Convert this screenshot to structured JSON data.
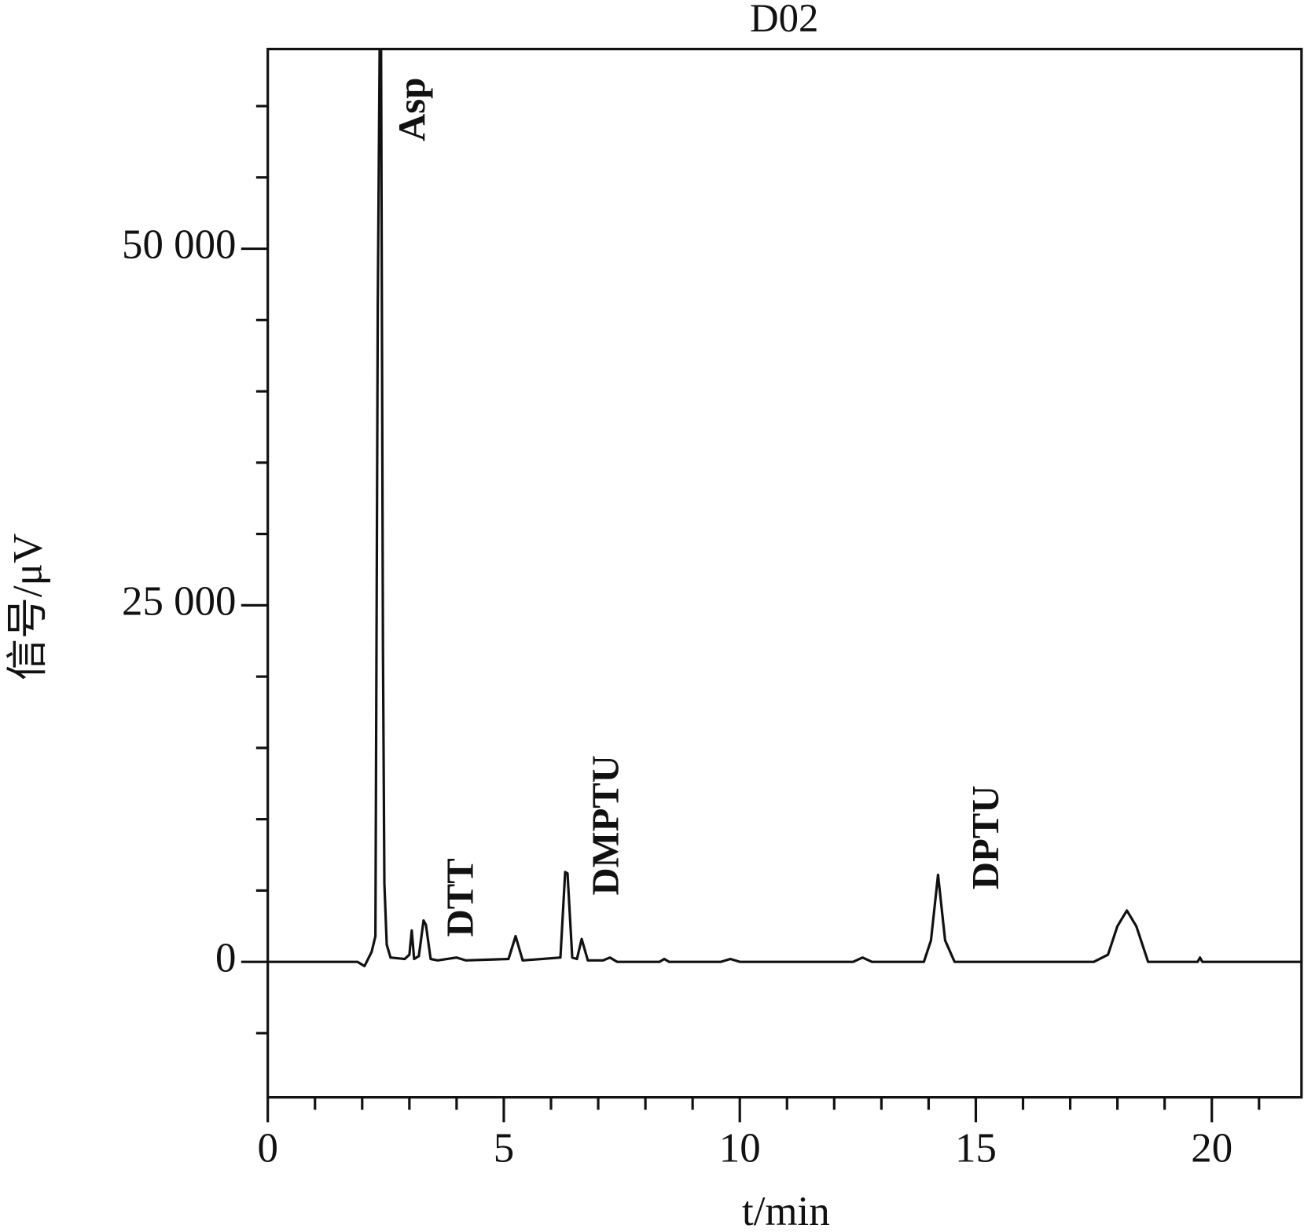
{
  "chart_data": {
    "type": "line",
    "title": "D02",
    "x_label": "t/min",
    "y_label": "信号/μV",
    "xlim": [
      0,
      21.9
    ],
    "ylim": [
      -9500,
      64000
    ],
    "xticks": [
      0,
      5,
      10,
      15,
      20
    ],
    "xminorticks": [
      1,
      2,
      3,
      4,
      6,
      7,
      8,
      9,
      11,
      12,
      13,
      14,
      16,
      17,
      18,
      19,
      21
    ],
    "yticks": [
      0,
      {
        "value": 25000,
        "label": "25 000"
      },
      {
        "value": 50000,
        "label": "50 000"
      }
    ],
    "yminorticks": [
      -5000,
      5000,
      10000,
      15000,
      20000,
      30000,
      35000,
      40000,
      45000,
      55000,
      60000
    ],
    "annotations": [
      "Asp",
      "DTT",
      "DMPTU",
      "DPTU"
    ],
    "series": [
      {
        "color": "#111111",
        "x": [
          0,
          1.9,
          2.05,
          2.2,
          2.28,
          2.33,
          2.37,
          2.4,
          2.44,
          2.47,
          2.52,
          2.6,
          2.9,
          3.0,
          3.05,
          3.1,
          3.2,
          3.3,
          3.35,
          3.45,
          3.6,
          4.0,
          4.2,
          5.1,
          5.25,
          5.4,
          5.8,
          6.2,
          6.3,
          6.35,
          6.45,
          6.55,
          6.65,
          6.78,
          7.1,
          7.25,
          7.4,
          8.3,
          8.4,
          8.5,
          9.6,
          9.8,
          10.0,
          12.4,
          12.6,
          12.8,
          13.9,
          14.05,
          14.2,
          14.35,
          14.55,
          17.5,
          17.8,
          18.0,
          18.2,
          18.4,
          18.65,
          19.7,
          19.75,
          19.8,
          21.9
        ],
        "y": [
          0,
          0,
          -300,
          700,
          1800,
          46000,
          64000,
          64000,
          22000,
          5500,
          1200,
          300,
          200,
          500,
          2200,
          200,
          400,
          2900,
          2600,
          200,
          100,
          300,
          100,
          200,
          1800,
          100,
          200,
          300,
          6300,
          6200,
          300,
          200,
          1600,
          100,
          100,
          300,
          0,
          0,
          200,
          0,
          0,
          200,
          0,
          0,
          300,
          0,
          0,
          1500,
          6100,
          1500,
          0,
          0,
          500,
          2500,
          3600,
          2500,
          0,
          0,
          300,
          0,
          0
        ]
      }
    ]
  }
}
